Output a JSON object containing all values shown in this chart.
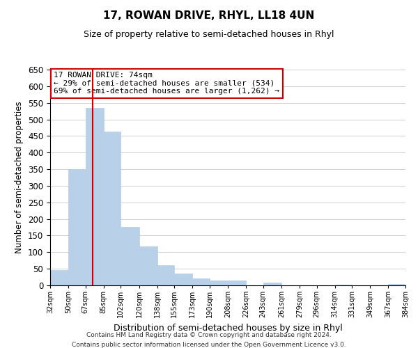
{
  "title": "17, ROWAN DRIVE, RHYL, LL18 4UN",
  "subtitle": "Size of property relative to semi-detached houses in Rhyl",
  "xlabel": "Distribution of semi-detached houses by size in Rhyl",
  "ylabel": "Number of semi-detached properties",
  "footer_line1": "Contains HM Land Registry data © Crown copyright and database right 2024.",
  "footer_line2": "Contains public sector information licensed under the Open Government Licence v3.0.",
  "annotation_title": "17 ROWAN DRIVE: 74sqm",
  "annotation_line1": "← 29% of semi-detached houses are smaller (534)",
  "annotation_line2": "69% of semi-detached houses are larger (1,262) →",
  "property_size": 74,
  "bar_left_edges": [
    32,
    50,
    67,
    85,
    102,
    120,
    138,
    155,
    173,
    190,
    208,
    226,
    243,
    261,
    279,
    296,
    314,
    331,
    349,
    367
  ],
  "bar_widths": [
    18,
    17,
    18,
    17,
    18,
    18,
    17,
    18,
    17,
    18,
    18,
    17,
    18,
    18,
    17,
    18,
    17,
    18,
    18,
    17
  ],
  "bar_heights": [
    47,
    350,
    535,
    463,
    177,
    118,
    61,
    35,
    22,
    14,
    14,
    0,
    8,
    0,
    0,
    0,
    3,
    0,
    0,
    4
  ],
  "bar_color": "#b8d0e8",
  "bar_edgecolor": "#b8d0e8",
  "redline_color": "#cc0000",
  "annotation_box_edgecolor": "#cc0000",
  "tick_labels": [
    "32sqm",
    "50sqm",
    "67sqm",
    "85sqm",
    "102sqm",
    "120sqm",
    "138sqm",
    "155sqm",
    "173sqm",
    "190sqm",
    "208sqm",
    "226sqm",
    "243sqm",
    "261sqm",
    "279sqm",
    "296sqm",
    "314sqm",
    "331sqm",
    "349sqm",
    "367sqm",
    "384sqm"
  ],
  "ylim": [
    0,
    650
  ],
  "yticks": [
    0,
    50,
    100,
    150,
    200,
    250,
    300,
    350,
    400,
    450,
    500,
    550,
    600,
    650
  ],
  "background_color": "#ffffff",
  "grid_color": "#d0d0d0"
}
